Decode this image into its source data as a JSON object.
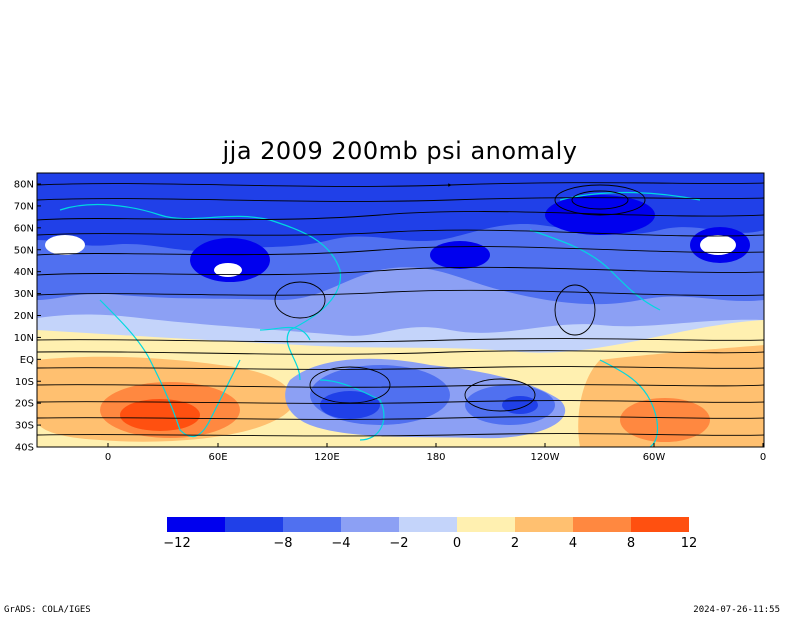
{
  "title": "jja 2009 200mb psi anomaly",
  "footer": {
    "left": "GrADS: COLA/IGES",
    "right": "2024-07-26-11:55"
  },
  "map": {
    "lat_ticks": [
      "80N",
      "70N",
      "60N",
      "50N",
      "40N",
      "30N",
      "20N",
      "10N",
      "EQ",
      "10S",
      "20S",
      "30S",
      "40S"
    ],
    "lon_ticks": [
      "0",
      "60E",
      "120E",
      "180",
      "120W",
      "60W",
      "0"
    ],
    "lon_range": [
      -40,
      360
    ],
    "lat_range": [
      -40,
      85
    ],
    "coastline_color": "#00d8e0",
    "streamline_color": "#000000"
  },
  "colorbar": {
    "labels": [
      "−12",
      "−8",
      "−4",
      "−2",
      "0",
      "2",
      "4",
      "8",
      "12"
    ],
    "colors": [
      "#0000ee",
      "#2040e8",
      "#5070f0",
      "#8ca0f4",
      "#c4d4fa",
      "#fff0b0",
      "#ffc070",
      "#ff8840",
      "#ff5010"
    ]
  }
}
